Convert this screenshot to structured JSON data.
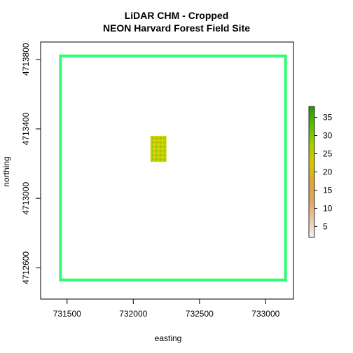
{
  "chart_data": {
    "type": "heatmap",
    "title": "LiDAR CHM - Cropped",
    "subtitle": "NEON Harvard Forest Field Site",
    "xlabel": "easting",
    "ylabel": "northing",
    "x_ticks": [
      "731500",
      "732000",
      "732500",
      "733000"
    ],
    "y_ticks": [
      "4712600",
      "4713000",
      "4713400",
      "4713800"
    ],
    "x_tick_values": [
      731500,
      732000,
      732500,
      733000
    ],
    "y_tick_values": [
      4712600,
      4713000,
      4713400,
      4713800
    ],
    "xlim": [
      731300,
      733210
    ],
    "ylim": [
      4712420,
      4713900
    ],
    "raster_extent": {
      "xmin": 732130,
      "xmax": 732250,
      "ymin": 4713210,
      "ymax": 4713360
    },
    "crop_extent": {
      "xmin": 731450,
      "xmax": 733150,
      "ymin": 4712530,
      "ymax": 4713820
    },
    "crop_extent_color": "#2eff71",
    "legend": {
      "ticks": [
        "5",
        "10",
        "15",
        "20",
        "25",
        "30",
        "35"
      ],
      "tick_values": [
        5,
        10,
        15,
        20,
        25,
        30,
        35
      ],
      "range": [
        2,
        38
      ],
      "placement": "right",
      "colors": [
        "#f2f2f2",
        "#e8c7a8",
        "#e0a75c",
        "#dca63c",
        "#d8c800",
        "#9fd000",
        "#5dbb00",
        "#2a9a00"
      ]
    }
  }
}
